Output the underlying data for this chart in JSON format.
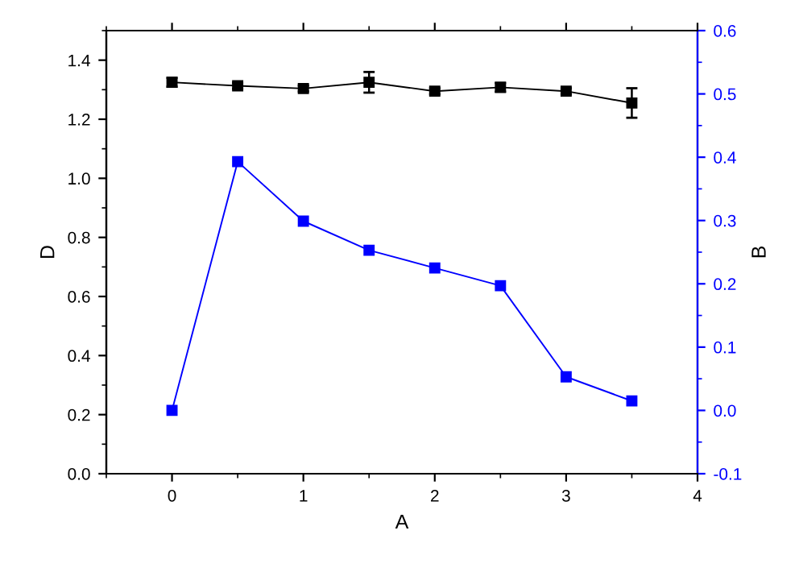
{
  "chart_data": {
    "type": "line",
    "xlabel": "A",
    "ylabel": "D",
    "y2label": "B",
    "x": [
      0,
      0.5,
      1,
      1.5,
      2,
      2.5,
      3,
      3.5
    ],
    "series": [
      {
        "color": "#000000",
        "values": [
          1.325,
          1.313,
          1.304,
          1.325,
          1.295,
          1.308,
          1.295,
          1.255
        ],
        "errors": [
          0.015,
          0.01,
          0.01,
          0.035,
          0.01,
          0.015,
          0.01,
          0.05
        ]
      },
      {
        "color": "#0000ff",
        "axis": "y2",
        "values": [
          0.0,
          0.393,
          0.299,
          0.253,
          0.225,
          0.197,
          0.053,
          0.015
        ]
      }
    ],
    "xlim": [
      -0.5,
      4
    ],
    "xticks": [
      0,
      1,
      2,
      3,
      4
    ],
    "ylim": [
      0,
      1.5
    ],
    "yticks": [
      {
        "value": 0,
        "label": "0.0"
      },
      0.2,
      0.4,
      0.6,
      0.8,
      {
        "value": 1,
        "label": "1.0"
      },
      1.2,
      1.4
    ],
    "y2lim": [
      -0.1,
      0.6
    ],
    "y2ticks": [
      -0.1,
      {
        "value": 0,
        "label": "0.0"
      },
      0.1,
      0.2,
      0.3,
      0.4,
      0.5,
      0.6
    ],
    "marker": "square",
    "line_style": "solid",
    "grid": false,
    "legend": false
  }
}
